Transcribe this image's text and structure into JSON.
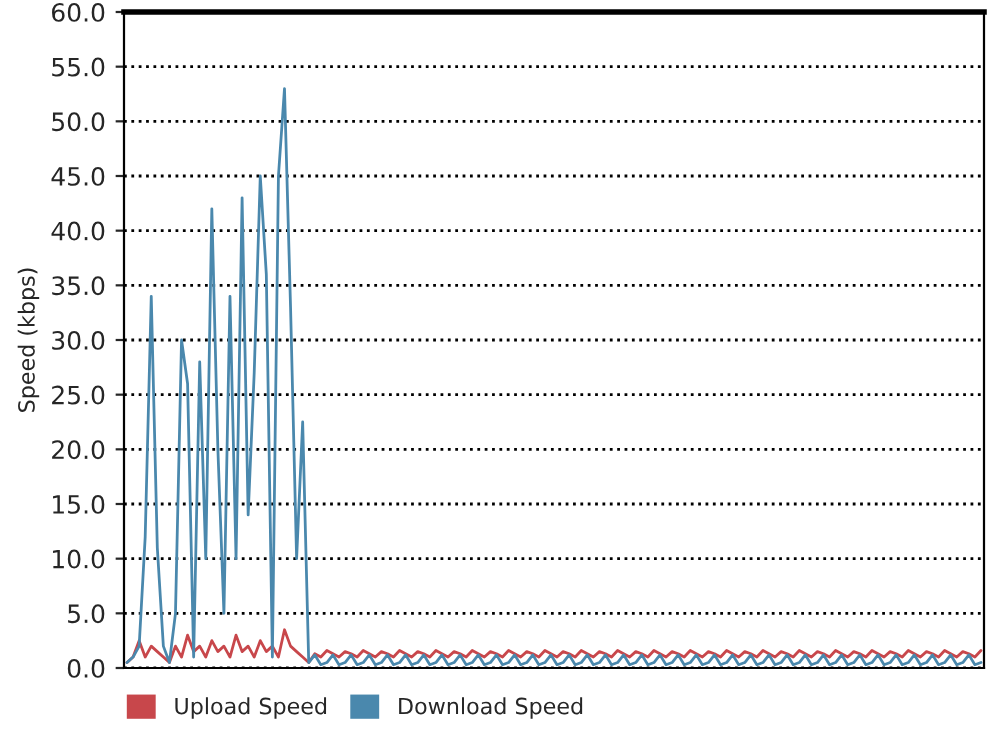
{
  "chart_data": {
    "type": "line",
    "ylabel": "Speed (kbps)",
    "categories": [
      null,
      null,
      null,
      null,
      null,
      null,
      null,
      null,
      null,
      null,
      null,
      null,
      null,
      null,
      null,
      null,
      null,
      null,
      null,
      null,
      null,
      null,
      null,
      null,
      null,
      null,
      null,
      null,
      null,
      null,
      null,
      null,
      null,
      null,
      null,
      null,
      null,
      null,
      null,
      null,
      null,
      null,
      null,
      null,
      null,
      null,
      null,
      null,
      null,
      null,
      null,
      null,
      null,
      null,
      null,
      null,
      null,
      null,
      null,
      null,
      null,
      null,
      null,
      null,
      null,
      null,
      null,
      null,
      null,
      null,
      null,
      null,
      null,
      null,
      null,
      null,
      null,
      null,
      null,
      null,
      null,
      null,
      null,
      null,
      null,
      null,
      null,
      null,
      null,
      null,
      null,
      null,
      null,
      null,
      null,
      null,
      null,
      null,
      null,
      null,
      null,
      null,
      null,
      null,
      null,
      null,
      null,
      null,
      null,
      null,
      null,
      null,
      null,
      null,
      null,
      null,
      null,
      null,
      null,
      null,
      null,
      null,
      null,
      null,
      null,
      null,
      null,
      null,
      null,
      null,
      null,
      null,
      null,
      null,
      null,
      null,
      null,
      null,
      null,
      null,
      null,
      null
    ],
    "series": [
      {
        "name": "Upload Speed",
        "color": "#c8474b",
        "values": [
          0.5,
          1,
          2.5,
          1,
          2,
          1.5,
          1,
          0.5,
          2,
          1,
          3,
          1.5,
          2,
          1,
          2.5,
          1.5,
          2,
          1,
          3,
          1.5,
          2,
          1,
          2.5,
          1.5,
          2,
          1,
          3.5,
          2,
          1.5,
          1,
          0.5,
          1.3,
          1.0,
          1.6,
          1.3,
          1.0,
          1.5,
          1.3,
          1.0,
          1.6,
          1.3,
          1.0,
          1.5,
          1.3,
          1.0,
          1.6,
          1.3,
          1.0,
          1.5,
          1.3,
          1.0,
          1.6,
          1.3,
          1.0,
          1.5,
          1.3,
          1.0,
          1.6,
          1.3,
          1.0,
          1.5,
          1.3,
          1.0,
          1.6,
          1.3,
          1.0,
          1.5,
          1.3,
          1.0,
          1.6,
          1.3,
          1.0,
          1.5,
          1.3,
          1.0,
          1.6,
          1.3,
          1.0,
          1.5,
          1.3,
          1.0,
          1.6,
          1.3,
          1.0,
          1.5,
          1.3,
          1.0,
          1.6,
          1.3,
          1.0,
          1.5,
          1.3,
          1.0,
          1.6,
          1.3,
          1.0,
          1.5,
          1.3,
          1.0,
          1.6,
          1.3,
          1.0,
          1.5,
          1.3,
          1.0,
          1.6,
          1.3,
          1.0,
          1.5,
          1.3,
          1.0,
          1.6,
          1.3,
          1.0,
          1.5,
          1.3,
          1.0,
          1.6,
          1.3,
          1.0,
          1.5,
          1.3,
          1.0,
          1.6,
          1.3,
          1.0,
          1.5,
          1.3,
          1.0,
          1.6,
          1.3,
          1.0,
          1.5,
          1.3,
          1.0,
          1.6,
          1.3,
          1.0,
          1.5,
          1.3,
          1.0,
          1.6
        ]
      },
      {
        "name": "Download Speed",
        "color": "#4a88ad",
        "values": [
          0.5,
          1,
          2,
          12,
          34,
          11,
          2,
          0.5,
          5,
          30,
          26,
          1,
          28,
          10,
          42,
          20,
          5,
          34,
          10,
          43,
          14,
          27,
          45,
          36,
          1,
          45,
          53,
          33,
          10,
          22.5,
          0.5,
          1.2,
          0.3,
          0.5,
          1.2,
          0.3,
          0.5,
          1.2,
          0.3,
          0.5,
          1.2,
          0.3,
          0.5,
          1.2,
          0.3,
          0.5,
          1.2,
          0.3,
          0.5,
          1.2,
          0.3,
          0.5,
          1.2,
          0.3,
          0.5,
          1.2,
          0.3,
          0.5,
          1.2,
          0.3,
          0.5,
          1.2,
          0.3,
          0.5,
          1.2,
          0.3,
          0.5,
          1.2,
          0.3,
          0.5,
          1.2,
          0.3,
          0.5,
          1.2,
          0.3,
          0.5,
          1.2,
          0.3,
          0.5,
          1.2,
          0.3,
          0.5,
          1.2,
          0.3,
          0.5,
          1.2,
          0.3,
          0.5,
          1.2,
          0.3,
          0.5,
          1.2,
          0.3,
          0.5,
          1.2,
          0.3,
          0.5,
          1.2,
          0.3,
          0.5,
          1.2,
          0.3,
          0.5,
          1.2,
          0.3,
          0.5,
          1.2,
          0.3,
          0.5,
          1.2,
          0.3,
          0.5,
          1.2,
          0.3,
          0.5,
          1.2,
          0.3,
          0.5,
          1.2,
          0.3,
          0.5,
          1.2,
          0.3,
          0.5,
          1.2,
          0.3,
          0.5,
          1.2,
          0.3,
          0.5,
          1.2,
          0.3,
          0.5,
          1.2,
          0.3,
          0.5,
          1.2,
          0.3,
          0.5,
          1.2,
          0.3,
          0.5
        ]
      }
    ],
    "ylim": [
      0,
      60
    ],
    "yticks": [
      {
        "value": 0,
        "label": "0.0"
      },
      {
        "value": 5,
        "label": "5.0"
      },
      {
        "value": 10,
        "label": "10.0"
      },
      {
        "value": 15,
        "label": "15.0"
      },
      {
        "value": 20,
        "label": "20.0"
      },
      {
        "value": 25,
        "label": "25.0"
      },
      {
        "value": 30,
        "label": "30.0"
      },
      {
        "value": 35,
        "label": "35.0"
      },
      {
        "value": 40,
        "label": "40.0"
      },
      {
        "value": 45,
        "label": "45.0"
      },
      {
        "value": 50,
        "label": "50.0"
      },
      {
        "value": 55,
        "label": "55.0"
      },
      {
        "value": 60,
        "label": "60.0"
      }
    ],
    "grid": "y",
    "legend": "bottom left",
    "line_style": "solid",
    "marker": "none"
  }
}
